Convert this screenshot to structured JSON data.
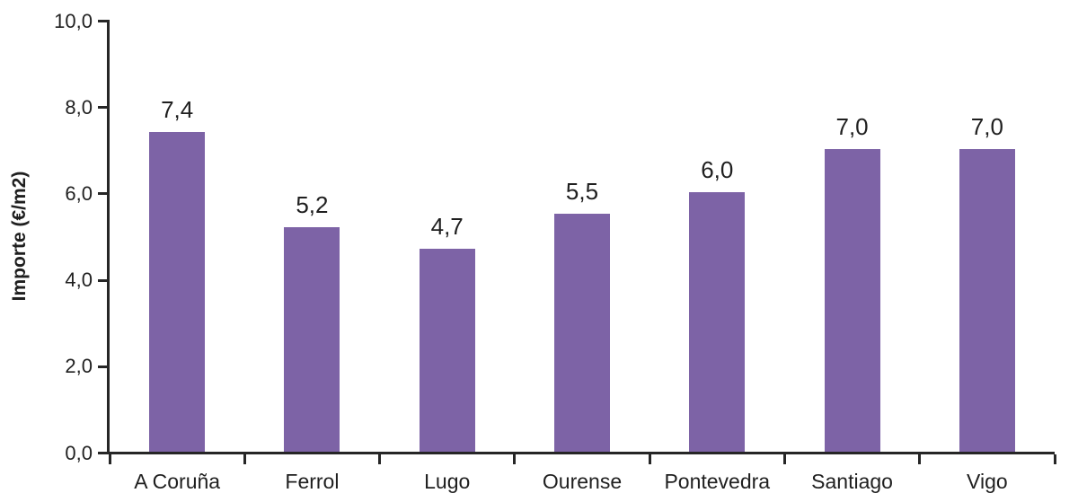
{
  "chart_data": {
    "type": "bar",
    "title": "",
    "xlabel": "",
    "ylabel": "Importe (€/m2)",
    "categories": [
      "A Coruña",
      "Ferrol",
      "Lugo",
      "Ourense",
      "Pontevedra",
      "Santiago",
      "Vigo"
    ],
    "values": [
      7.4,
      5.2,
      4.7,
      5.5,
      6.0,
      7.0,
      7.0
    ],
    "value_labels": [
      "7,4",
      "5,2",
      "4,7",
      "5,5",
      "6,0",
      "7,0",
      "7,0"
    ],
    "ylim": [
      0,
      10
    ],
    "ytick_step": 2,
    "ytick_labels": [
      "0,0",
      "2,0",
      "4,0",
      "6,0",
      "8,0",
      "10,0"
    ],
    "grid": false,
    "legend": null,
    "bar_color": "#7D63A6",
    "axis_color": "#262626",
    "text_color": "#1f1f1f"
  }
}
